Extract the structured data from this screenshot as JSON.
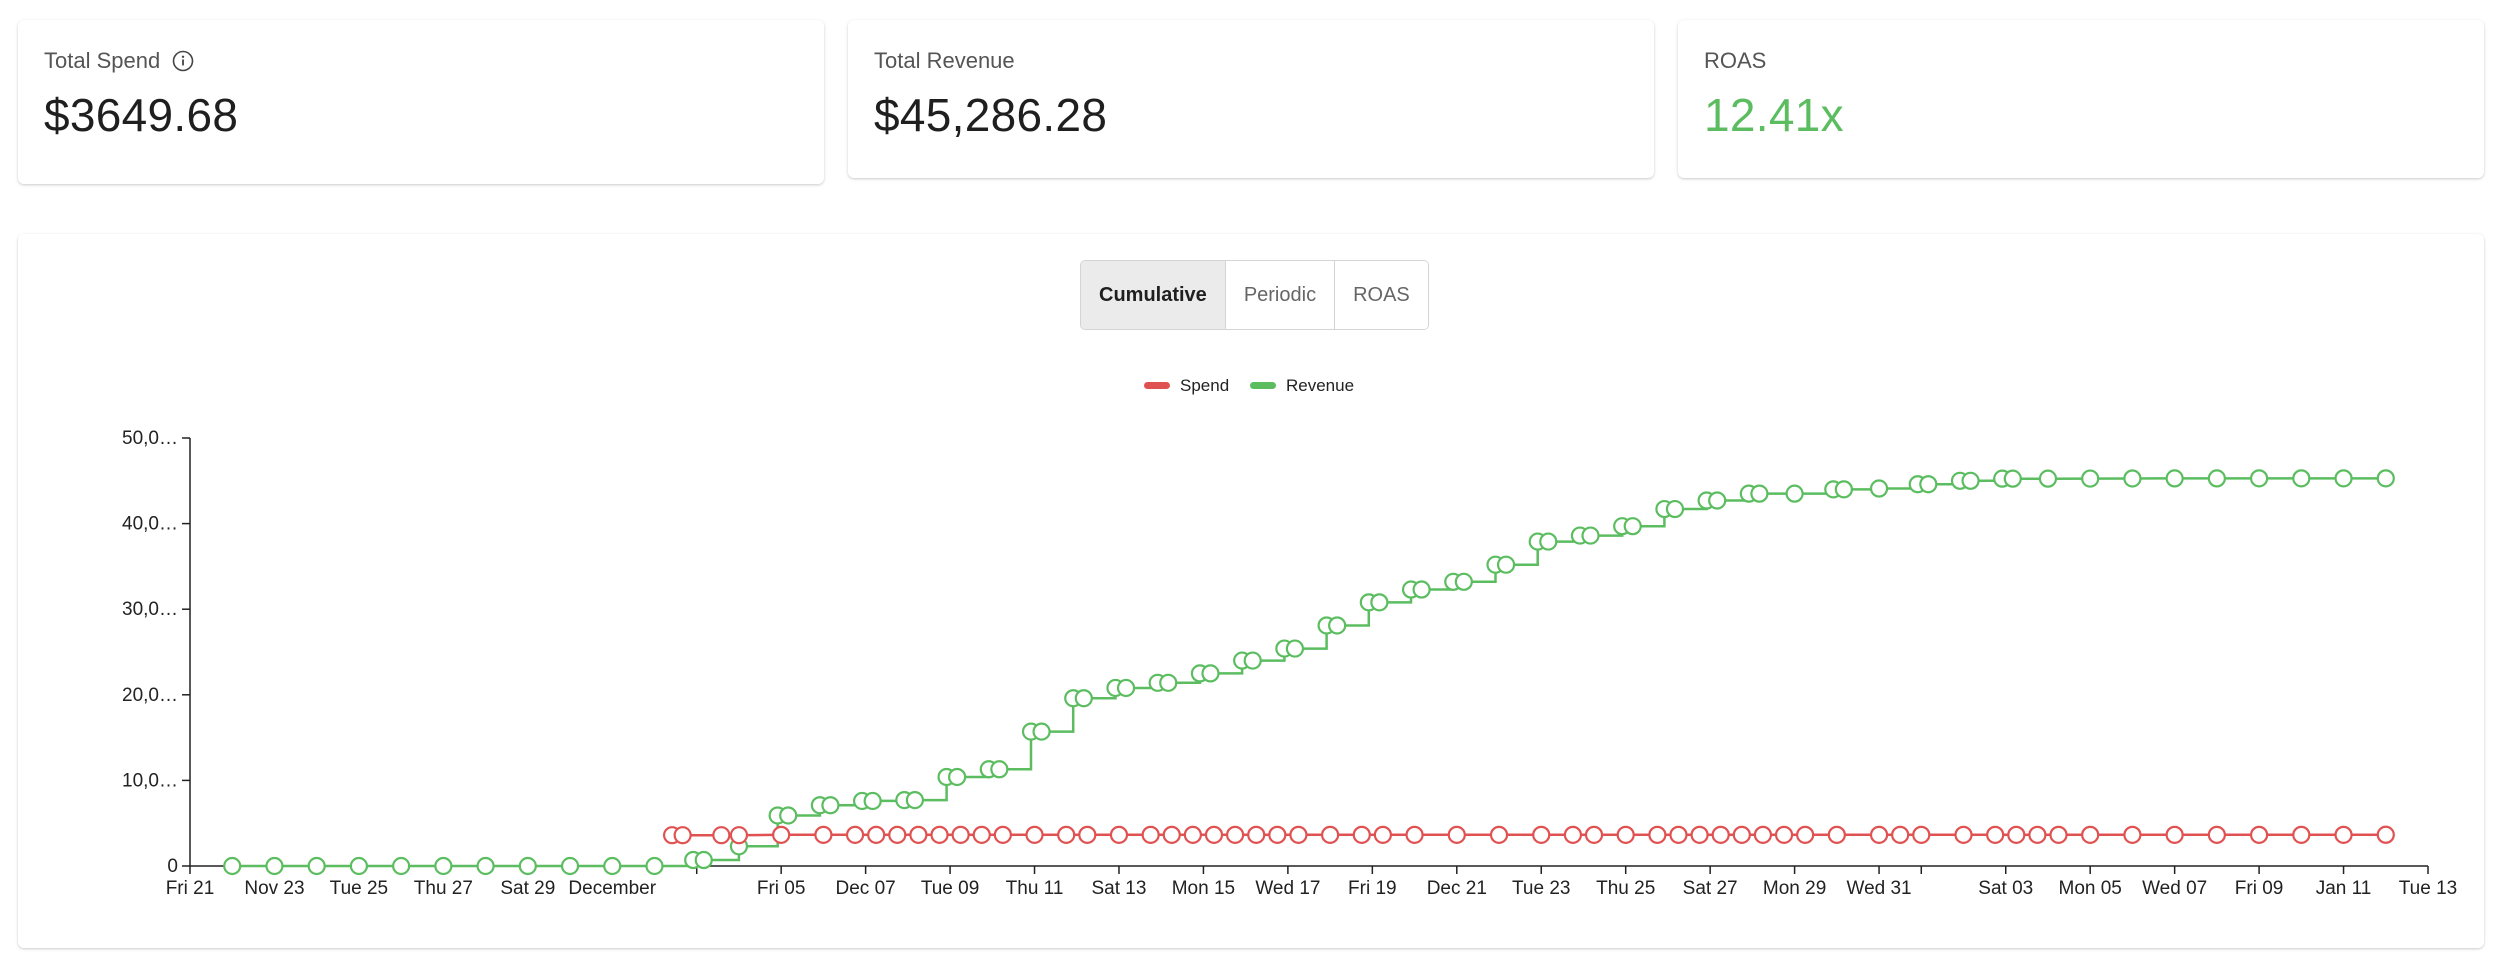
{
  "metrics": [
    {
      "label": "Total Spend",
      "value": "$3649.68",
      "has_info_icon": true
    },
    {
      "label": "Total Revenue",
      "value": "$45,286.28"
    },
    {
      "label": "ROAS",
      "value": "12.41x",
      "color": "#5bbd60"
    }
  ],
  "tabs": [
    {
      "label": "Cumulative",
      "active": true
    },
    {
      "label": "Periodic",
      "active": false
    },
    {
      "label": "ROAS",
      "active": false
    }
  ],
  "colors": {
    "spend": "#e05252",
    "revenue": "#5bbd60",
    "axis": "#222222"
  },
  "chart_data": {
    "type": "line",
    "title": "",
    "xlabel": "",
    "ylabel": "",
    "ylim": [
      0,
      50000
    ],
    "y_ticks": [
      0,
      10000,
      20000,
      30000,
      40000,
      50000
    ],
    "y_tick_labels": [
      "0",
      "10,0…",
      "20,0…",
      "30,0…",
      "40,0…",
      "50,0…"
    ],
    "x_range": [
      "2025-11-21",
      "2026-01-13"
    ],
    "x_ticks": [
      {
        "date": "2025-11-21",
        "label": "Fri 21"
      },
      {
        "date": "2025-11-23",
        "label": "Nov 23"
      },
      {
        "date": "2025-11-25",
        "label": "Tue 25"
      },
      {
        "date": "2025-11-27",
        "label": "Thu 27"
      },
      {
        "date": "2025-11-29",
        "label": "Sat 29"
      },
      {
        "date": "2025-12-01",
        "label": "December"
      },
      {
        "date": "2025-12-03",
        "label": ""
      },
      {
        "date": "2025-12-05",
        "label": "Fri 05"
      },
      {
        "date": "2025-12-07",
        "label": "Dec 07"
      },
      {
        "date": "2025-12-09",
        "label": "Tue 09"
      },
      {
        "date": "2025-12-11",
        "label": "Thu 11"
      },
      {
        "date": "2025-12-13",
        "label": "Sat 13"
      },
      {
        "date": "2025-12-15",
        "label": "Mon 15"
      },
      {
        "date": "2025-12-17",
        "label": "Wed 17"
      },
      {
        "date": "2025-12-19",
        "label": "Fri 19"
      },
      {
        "date": "2025-12-21",
        "label": "Dec 21"
      },
      {
        "date": "2025-12-23",
        "label": "Tue 23"
      },
      {
        "date": "2025-12-25",
        "label": "Thu 25"
      },
      {
        "date": "2025-12-27",
        "label": "Sat 27"
      },
      {
        "date": "2025-12-29",
        "label": "Mon 29"
      },
      {
        "date": "2025-12-31",
        "label": "Wed 31"
      },
      {
        "date": "2026-01-01",
        "label": ""
      },
      {
        "date": "2026-01-03",
        "label": "Sat 03"
      },
      {
        "date": "2026-01-05",
        "label": "Mon 05"
      },
      {
        "date": "2026-01-07",
        "label": "Wed 07"
      },
      {
        "date": "2026-01-09",
        "label": "Fri 09"
      },
      {
        "date": "2026-01-11",
        "label": "Jan 11"
      },
      {
        "date": "2026-01-13",
        "label": "Tue 13"
      }
    ],
    "series": [
      {
        "name": "Spend",
        "color": "#e05252",
        "points": [
          [
            "2025-12-02T10:00",
            3600
          ],
          [
            "2025-12-02T16:00",
            3600
          ],
          [
            "2025-12-03T14:00",
            3600
          ],
          [
            "2025-12-04T00:00",
            3600
          ],
          [
            "2025-12-05T00:00",
            3640
          ],
          [
            "2025-12-06T00:00",
            3640
          ],
          [
            "2025-12-06T18:00",
            3640
          ],
          [
            "2025-12-07T06:00",
            3640
          ],
          [
            "2025-12-07T18:00",
            3640
          ],
          [
            "2025-12-08T06:00",
            3640
          ],
          [
            "2025-12-08T18:00",
            3640
          ],
          [
            "2025-12-09T06:00",
            3640
          ],
          [
            "2025-12-09T18:00",
            3640
          ],
          [
            "2025-12-10T06:00",
            3640
          ],
          [
            "2025-12-11T00:00",
            3640
          ],
          [
            "2025-12-11T18:00",
            3640
          ],
          [
            "2025-12-12T06:00",
            3640
          ],
          [
            "2025-12-13T00:00",
            3640
          ],
          [
            "2025-12-13T18:00",
            3640
          ],
          [
            "2025-12-14T06:00",
            3640
          ],
          [
            "2025-12-14T18:00",
            3640
          ],
          [
            "2025-12-15T06:00",
            3640
          ],
          [
            "2025-12-15T18:00",
            3640
          ],
          [
            "2025-12-16T06:00",
            3640
          ],
          [
            "2025-12-16T18:00",
            3640
          ],
          [
            "2025-12-17T06:00",
            3640
          ],
          [
            "2025-12-18T00:00",
            3640
          ],
          [
            "2025-12-18T18:00",
            3640
          ],
          [
            "2025-12-19T06:00",
            3640
          ],
          [
            "2025-12-20T00:00",
            3640
          ],
          [
            "2025-12-21T00:00",
            3640
          ],
          [
            "2025-12-22T00:00",
            3640
          ],
          [
            "2025-12-23T00:00",
            3640
          ],
          [
            "2025-12-23T18:00",
            3640
          ],
          [
            "2025-12-24T06:00",
            3640
          ],
          [
            "2025-12-25T00:00",
            3640
          ],
          [
            "2025-12-25T18:00",
            3640
          ],
          [
            "2025-12-26T06:00",
            3640
          ],
          [
            "2025-12-26T18:00",
            3640
          ],
          [
            "2025-12-27T06:00",
            3640
          ],
          [
            "2025-12-27T18:00",
            3640
          ],
          [
            "2025-12-28T06:00",
            3640
          ],
          [
            "2025-12-28T18:00",
            3640
          ],
          [
            "2025-12-29T06:00",
            3640
          ],
          [
            "2025-12-30T00:00",
            3640
          ],
          [
            "2025-12-31T00:00",
            3640
          ],
          [
            "2025-12-31T12:00",
            3640
          ],
          [
            "2026-01-01T00:00",
            3640
          ],
          [
            "2026-01-02T00:00",
            3640
          ],
          [
            "2026-01-02T18:00",
            3640
          ],
          [
            "2026-01-03T06:00",
            3640
          ],
          [
            "2026-01-03T18:00",
            3640
          ],
          [
            "2026-01-04T06:00",
            3640
          ],
          [
            "2026-01-05T00:00",
            3640
          ],
          [
            "2026-01-06T00:00",
            3640
          ],
          [
            "2026-01-07T00:00",
            3640
          ],
          [
            "2026-01-08T00:00",
            3640
          ],
          [
            "2026-01-09T00:00",
            3640
          ],
          [
            "2026-01-10T00:00",
            3640
          ],
          [
            "2026-01-11T00:00",
            3640
          ],
          [
            "2026-01-12T00:00",
            3650
          ]
        ]
      },
      {
        "name": "Revenue",
        "color": "#5bbd60",
        "points": [
          [
            "2025-11-22T00:00",
            0
          ],
          [
            "2025-11-23T00:00",
            0
          ],
          [
            "2025-11-24T00:00",
            0
          ],
          [
            "2025-11-25T00:00",
            0
          ],
          [
            "2025-11-26T00:00",
            0
          ],
          [
            "2025-11-27T00:00",
            0
          ],
          [
            "2025-11-28T00:00",
            0
          ],
          [
            "2025-11-29T00:00",
            0
          ],
          [
            "2025-11-30T00:00",
            0
          ],
          [
            "2025-12-01T00:00",
            0
          ],
          [
            "2025-12-02T00:00",
            0
          ],
          [
            "2025-12-02T22:00",
            700
          ],
          [
            "2025-12-03T04:00",
            700
          ],
          [
            "2025-12-04T00:00",
            2300
          ],
          [
            "2025-12-04T22:00",
            5900
          ],
          [
            "2025-12-05T04:00",
            5900
          ],
          [
            "2025-12-05T22:00",
            7100
          ],
          [
            "2025-12-06T04:00",
            7100
          ],
          [
            "2025-12-06T22:00",
            7600
          ],
          [
            "2025-12-07T04:00",
            7600
          ],
          [
            "2025-12-07T22:00",
            7700
          ],
          [
            "2025-12-08T04:00",
            7700
          ],
          [
            "2025-12-08T22:00",
            10400
          ],
          [
            "2025-12-09T04:00",
            10400
          ],
          [
            "2025-12-09T22:00",
            11300
          ],
          [
            "2025-12-10T04:00",
            11300
          ],
          [
            "2025-12-10T22:00",
            15700
          ],
          [
            "2025-12-11T04:00",
            15700
          ],
          [
            "2025-12-11T22:00",
            19600
          ],
          [
            "2025-12-12T04:00",
            19600
          ],
          [
            "2025-12-12T22:00",
            20800
          ],
          [
            "2025-12-13T04:00",
            20800
          ],
          [
            "2025-12-13T22:00",
            21400
          ],
          [
            "2025-12-14T04:00",
            21400
          ],
          [
            "2025-12-14T22:00",
            22500
          ],
          [
            "2025-12-15T04:00",
            22500
          ],
          [
            "2025-12-15T22:00",
            24000
          ],
          [
            "2025-12-16T04:00",
            24000
          ],
          [
            "2025-12-16T22:00",
            25400
          ],
          [
            "2025-12-17T04:00",
            25400
          ],
          [
            "2025-12-17T22:00",
            28100
          ],
          [
            "2025-12-18T04:00",
            28100
          ],
          [
            "2025-12-18T22:00",
            30800
          ],
          [
            "2025-12-19T04:00",
            30800
          ],
          [
            "2025-12-19T22:00",
            32300
          ],
          [
            "2025-12-20T04:00",
            32300
          ],
          [
            "2025-12-20T22:00",
            33200
          ],
          [
            "2025-12-21T04:00",
            33200
          ],
          [
            "2025-12-21T22:00",
            35200
          ],
          [
            "2025-12-22T04:00",
            35200
          ],
          [
            "2025-12-22T22:00",
            37900
          ],
          [
            "2025-12-23T04:00",
            37900
          ],
          [
            "2025-12-23T22:00",
            38600
          ],
          [
            "2025-12-24T04:00",
            38600
          ],
          [
            "2025-12-24T22:00",
            39700
          ],
          [
            "2025-12-25T04:00",
            39700
          ],
          [
            "2025-12-25T22:00",
            41700
          ],
          [
            "2025-12-26T04:00",
            41700
          ],
          [
            "2025-12-26T22:00",
            42700
          ],
          [
            "2025-12-27T04:00",
            42700
          ],
          [
            "2025-12-27T22:00",
            43500
          ],
          [
            "2025-12-28T04:00",
            43500
          ],
          [
            "2025-12-29T00:00",
            43500
          ],
          [
            "2025-12-29T22:00",
            44000
          ],
          [
            "2025-12-30T04:00",
            44000
          ],
          [
            "2025-12-31T00:00",
            44100
          ],
          [
            "2025-12-31T22:00",
            44600
          ],
          [
            "2026-01-01T04:00",
            44600
          ],
          [
            "2026-01-01T22:00",
            45000
          ],
          [
            "2026-01-02T04:00",
            45000
          ],
          [
            "2026-01-02T22:00",
            45250
          ],
          [
            "2026-01-03T04:00",
            45250
          ],
          [
            "2026-01-04T00:00",
            45250
          ],
          [
            "2026-01-05T00:00",
            45260
          ],
          [
            "2026-01-06T00:00",
            45270
          ],
          [
            "2026-01-07T00:00",
            45280
          ],
          [
            "2026-01-08T00:00",
            45280
          ],
          [
            "2026-01-09T00:00",
            45285
          ],
          [
            "2026-01-10T00:00",
            45286
          ],
          [
            "2026-01-11T00:00",
            45286
          ],
          [
            "2026-01-12T00:00",
            45286
          ]
        ]
      }
    ],
    "legend": [
      {
        "label": "Spend",
        "color": "#e05252"
      },
      {
        "label": "Revenue",
        "color": "#5bbd60"
      }
    ],
    "legend_placement": "top-center",
    "grid": false
  }
}
